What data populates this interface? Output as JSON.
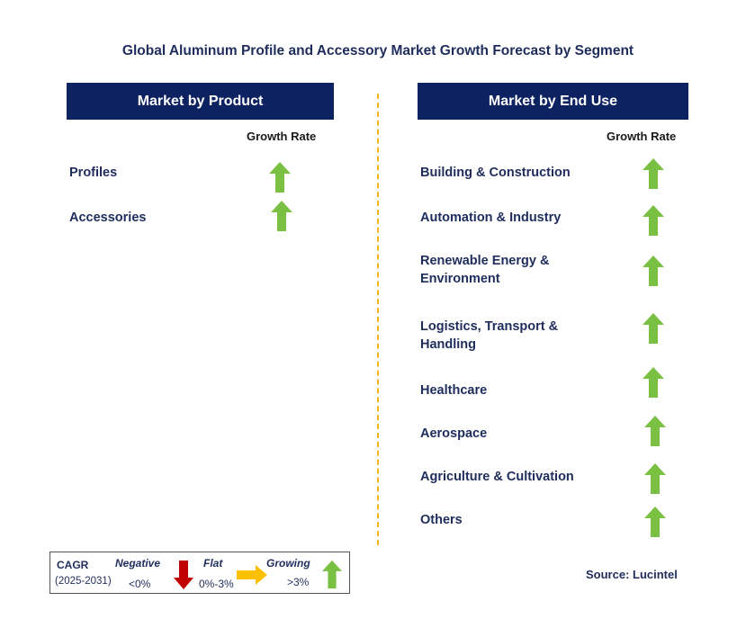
{
  "title": "Global Aluminum Profile and Accessory Market Growth Forecast by Segment",
  "product": {
    "header": "Market by Product",
    "column_label": "Growth Rate",
    "items": [
      {
        "label": "Profiles",
        "growth": "growing"
      },
      {
        "label": "Accessories",
        "growth": "growing"
      }
    ]
  },
  "end_use": {
    "header": "Market by End Use",
    "column_label": "Growth Rate",
    "items": [
      {
        "label": "Building & Construction",
        "growth": "growing"
      },
      {
        "label": "Automation & Industry",
        "growth": "growing"
      },
      {
        "label": "Renewable Energy & Environment",
        "line1": "Renewable Energy &",
        "line2": "Environment",
        "growth": "growing"
      },
      {
        "label": "Logistics, Transport & Handling",
        "line1": "Logistics, Transport &",
        "line2": "Handling",
        "growth": "growing"
      },
      {
        "label": "Healthcare",
        "growth": "growing"
      },
      {
        "label": "Aerospace",
        "growth": "growing"
      },
      {
        "label": "Agriculture & Cultivation",
        "growth": "growing"
      },
      {
        "label": "Others",
        "growth": "growing"
      }
    ]
  },
  "legend": {
    "cagr": "CAGR",
    "period": "(2025-2031)",
    "negative_label": "Negative",
    "negative_range": "<0%",
    "flat_label": "Flat",
    "flat_range": "0%-3%",
    "growing_label": "Growing",
    "growing_range": ">3%"
  },
  "source": "Source: Lucintel",
  "colors": {
    "header_bg": "#0d2260",
    "text": "#1f2d5c",
    "growing": "#7ac143",
    "negative": "#c00000",
    "flat": "#ffc000",
    "divider": "#f2b51c"
  }
}
